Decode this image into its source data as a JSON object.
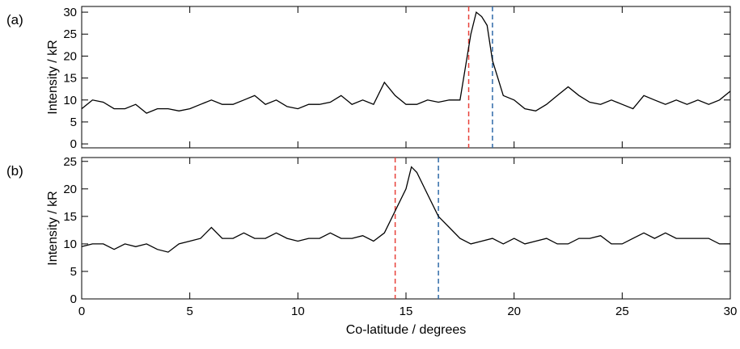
{
  "chart_data": [
    {
      "type": "line",
      "panel_label": "(a)",
      "ylabel": "Intensity / kR",
      "x": [
        0,
        0.5,
        1,
        1.5,
        2,
        2.5,
        3,
        3.5,
        4,
        4.5,
        5,
        5.5,
        6,
        6.5,
        7,
        7.5,
        8,
        8.5,
        9,
        9.5,
        10,
        10.5,
        11,
        11.5,
        12,
        12.5,
        13,
        13.5,
        14,
        14.5,
        15,
        15.5,
        16,
        16.5,
        17,
        17.5,
        18,
        18.25,
        18.5,
        18.75,
        19,
        19.5,
        20,
        20.5,
        21,
        21.5,
        22,
        22.5,
        23,
        23.5,
        24,
        24.5,
        25,
        25.5,
        26,
        26.5,
        27,
        27.5,
        28,
        28.5,
        29,
        29.5,
        30
      ],
      "series": [
        {
          "color": "#000000",
          "values": [
            8,
            10,
            9.5,
            8,
            8,
            9,
            7,
            8,
            8,
            7.5,
            8,
            9,
            10,
            9,
            9,
            10,
            11,
            9,
            10,
            8.5,
            8,
            9,
            9,
            9.5,
            11,
            9,
            10,
            9,
            14,
            11,
            9,
            9,
            10,
            9.5,
            10,
            10,
            25,
            30,
            29,
            27,
            19,
            11,
            10,
            8,
            7.5,
            9,
            11,
            13,
            11,
            9.5,
            9,
            10,
            9,
            8,
            11,
            10,
            9,
            10,
            9,
            10,
            9,
            10,
            12
          ]
        }
      ],
      "vlines": [
        {
          "x": 17.9,
          "color": "#e8413a"
        },
        {
          "x": 19.0,
          "color": "#2f6aa8"
        }
      ],
      "xlim": [
        0,
        30
      ],
      "xticks": [
        0,
        5,
        10,
        15,
        20,
        25,
        30
      ],
      "ylim": [
        -0.9,
        31.3
      ],
      "yticks": [
        0,
        5,
        10,
        15,
        20,
        25,
        30
      ]
    },
    {
      "type": "line",
      "panel_label": "(b)",
      "ylabel": "Intensity / kR",
      "xlabel": "Co-latitude / degrees",
      "x": [
        0,
        0.5,
        1,
        1.5,
        2,
        2.5,
        3,
        3.5,
        4,
        4.5,
        5,
        5.5,
        6,
        6.5,
        7,
        7.5,
        8,
        8.5,
        9,
        9.5,
        10,
        10.5,
        11,
        11.5,
        12,
        12.5,
        13,
        13.5,
        14,
        14.5,
        15,
        15.25,
        15.5,
        16,
        16.5,
        17,
        17.5,
        18,
        18.5,
        19,
        19.5,
        20,
        20.5,
        21,
        21.5,
        22,
        22.5,
        23,
        23.5,
        24,
        24.5,
        25,
        25.5,
        26,
        26.5,
        27,
        27.5,
        28,
        28.5,
        29,
        29.5,
        30
      ],
      "series": [
        {
          "color": "#000000",
          "values": [
            9.5,
            10,
            10,
            9,
            10,
            9.5,
            10,
            9,
            8.5,
            10,
            10.5,
            11,
            13,
            11,
            11,
            12,
            11,
            11,
            12,
            11,
            10.5,
            11,
            11,
            12,
            11,
            11,
            11.5,
            10.5,
            12,
            16,
            20,
            24,
            23,
            19,
            15,
            13,
            11,
            10,
            10.5,
            11,
            10,
            11,
            10,
            10.5,
            11,
            10,
            10,
            11,
            11,
            11.5,
            10,
            10,
            11,
            12,
            11,
            12,
            11,
            11,
            11,
            11,
            10,
            10
          ]
        }
      ],
      "vlines": [
        {
          "x": 14.5,
          "color": "#e8413a"
        },
        {
          "x": 16.5,
          "color": "#2f6aa8"
        }
      ],
      "xlim": [
        0,
        30
      ],
      "xticks": [
        0,
        5,
        10,
        15,
        20,
        25,
        30
      ],
      "ylim": [
        0,
        25.7
      ],
      "yticks": [
        0,
        5,
        10,
        15,
        20,
        25
      ]
    }
  ]
}
